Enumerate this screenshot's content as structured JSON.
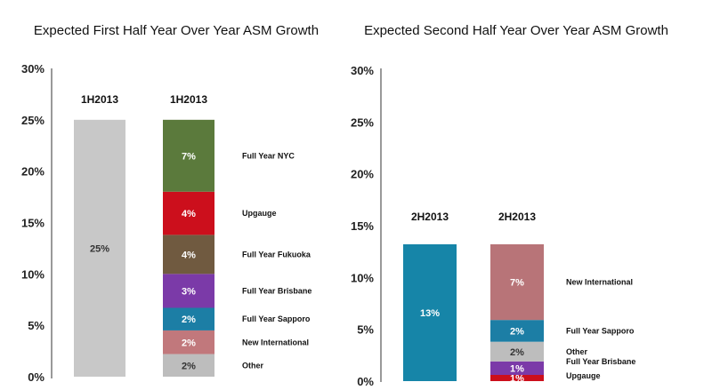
{
  "chart_data": [
    {
      "type": "bar",
      "title": "Expected First Half Year Over Year ASM Growth",
      "ylim": [
        0,
        30
      ],
      "yticks": [
        "0%",
        "5%",
        "10%",
        "15%",
        "20%",
        "25%",
        "30%"
      ],
      "categories": [
        "1H2013",
        "1H2013"
      ],
      "bars": [
        {
          "category": "1H2013",
          "segments": [
            {
              "name": "",
              "value": 25,
              "label": "25%",
              "color": "#c8c8c8",
              "text_color": "#333333"
            }
          ]
        },
        {
          "category": "1H2013",
          "segments": [
            {
              "name": "Other",
              "value": 2.2,
              "label": "2%",
              "color": "#bdbdbd",
              "text_color": "#333333"
            },
            {
              "name": "New International",
              "value": 2.3,
              "label": "2%",
              "color": "#c1787c",
              "text_color": "#ffffff"
            },
            {
              "name": "Full Year Sapporo",
              "value": 2.2,
              "label": "2%",
              "color": "#1c7ea5",
              "text_color": "#ffffff"
            },
            {
              "name": "Full Year Brisbane",
              "value": 3.3,
              "label": "3%",
              "color": "#7b3aa8",
              "text_color": "#ffffff"
            },
            {
              "name": "Full Year Fukuoka",
              "value": 3.8,
              "label": "4%",
              "color": "#705a40",
              "text_color": "#ffffff"
            },
            {
              "name": "Upgauge",
              "value": 4.2,
              "label": "4%",
              "color": "#cc0f1c",
              "text_color": "#ffffff"
            },
            {
              "name": "Full Year NYC",
              "value": 7.0,
              "label": "7%",
              "color": "#5b7a3c",
              "text_color": "#ffffff"
            }
          ]
        }
      ]
    },
    {
      "type": "bar",
      "title": "Expected Second Half Year Over Year ASM Growth",
      "ylim": [
        0,
        30
      ],
      "yticks": [
        "0%",
        "5%",
        "10%",
        "15%",
        "20%",
        "25%",
        "30%"
      ],
      "categories": [
        "2H2013",
        "2H2013"
      ],
      "bars": [
        {
          "category": "2H2013",
          "segments": [
            {
              "name": "",
              "value": 13.2,
              "label": "13%",
              "color": "#1685a8",
              "text_color": "#ffffff"
            }
          ]
        },
        {
          "category": "2H2013",
          "segments": [
            {
              "name": "Upgauge",
              "value": 0.6,
              "label": "1%",
              "color": "#cc0f1c",
              "text_color": "#ffffff"
            },
            {
              "name": "Full Year Brisbane",
              "value": 1.3,
              "label": "1%",
              "color": "#7b3aa8",
              "text_color": "#ffffff"
            },
            {
              "name": "Other",
              "value": 1.9,
              "label": "2%",
              "color": "#bdbdbd",
              "text_color": "#333333"
            },
            {
              "name": "Full Year Sapporo",
              "value": 2.1,
              "label": "2%",
              "color": "#1c7ea5",
              "text_color": "#ffffff"
            },
            {
              "name": "New International",
              "value": 7.3,
              "label": "7%",
              "color": "#b87478",
              "text_color": "#ffffff"
            }
          ]
        }
      ]
    }
  ]
}
